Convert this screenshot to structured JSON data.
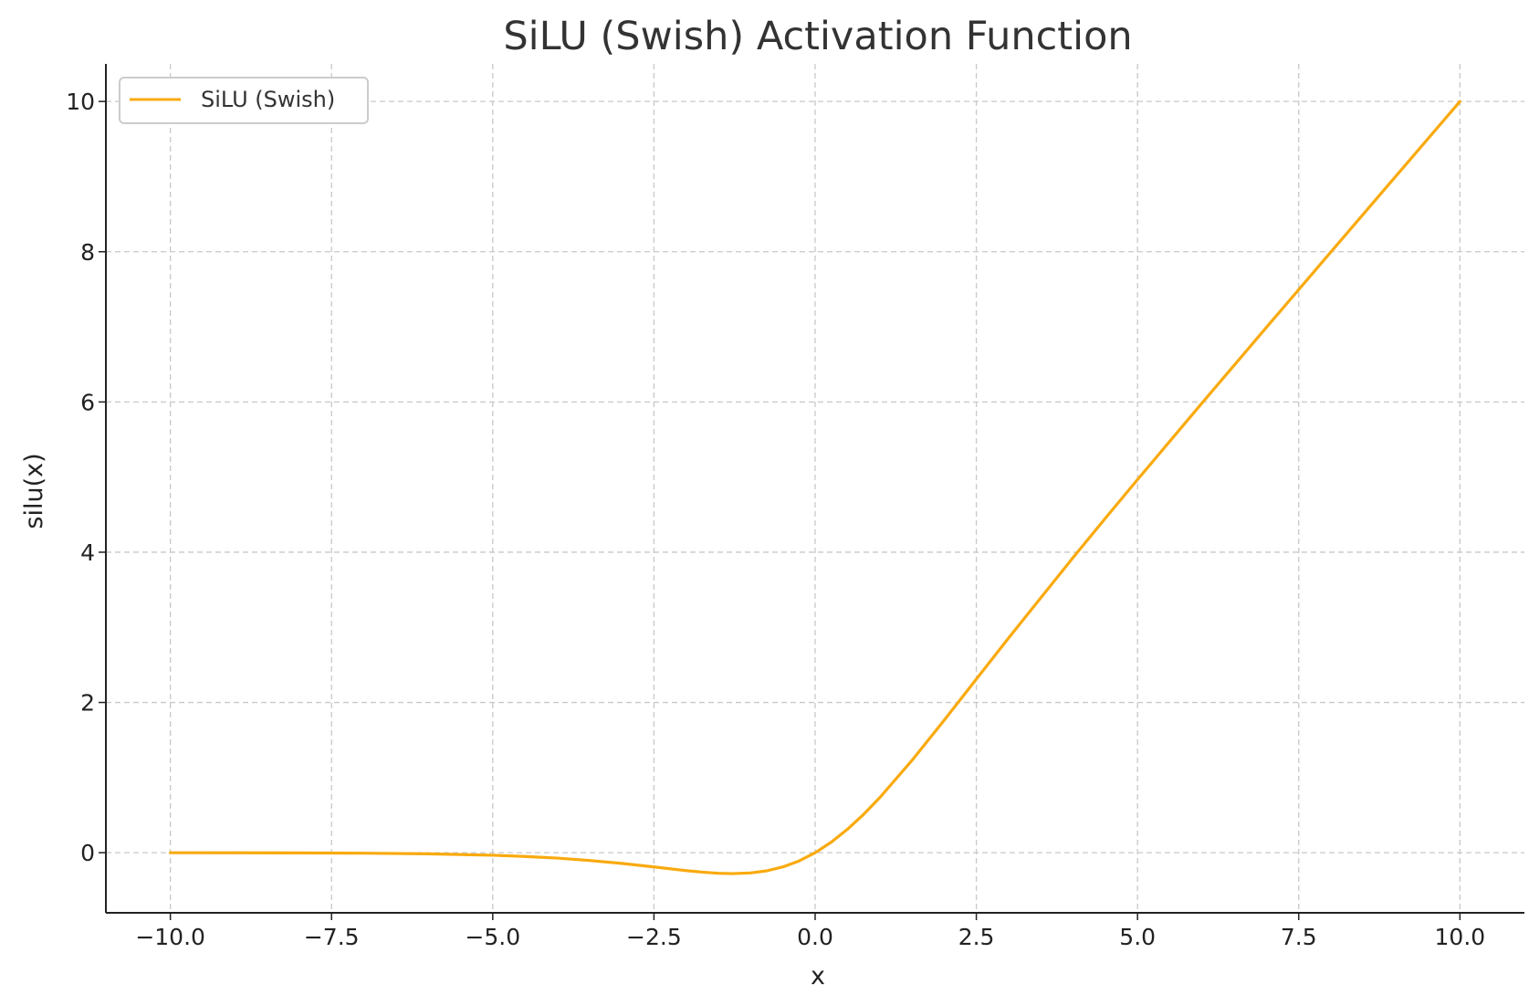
{
  "chart_data": {
    "type": "line",
    "title": "SiLU (Swish) Activation Function",
    "xlabel": "x",
    "ylabel": "silu(x)",
    "xlim": [
      -11,
      11
    ],
    "ylim": [
      -0.8,
      10.5
    ],
    "x_ticks": [
      -10,
      -7.5,
      -5,
      -2.5,
      0,
      2.5,
      5,
      7.5,
      10
    ],
    "x_tick_labels": [
      "−10.0",
      "−7.5",
      "−5.0",
      "−2.5",
      "0.0",
      "2.5",
      "5.0",
      "7.5",
      "10.0"
    ],
    "y_ticks": [
      0,
      2,
      4,
      6,
      8,
      10
    ],
    "y_tick_labels": [
      "0",
      "2",
      "4",
      "6",
      "8",
      "10"
    ],
    "grid": true,
    "grid_style": "dashed",
    "legend_position": "upper-left",
    "series": [
      {
        "name": "SiLU (Swish)",
        "color": "#F9AA0E",
        "x": [
          -10,
          -9,
          -8,
          -7,
          -6,
          -5,
          -4.5,
          -4,
          -3.5,
          -3,
          -2.5,
          -2,
          -1.75,
          -1.5,
          -1.28,
          -1,
          -0.75,
          -0.5,
          -0.25,
          0,
          0.25,
          0.5,
          0.75,
          1,
          1.5,
          2,
          2.5,
          3,
          3.5,
          4,
          4.5,
          5,
          6,
          7,
          8,
          9,
          10
        ],
        "y": [
          -0.0005,
          -0.0011,
          -0.0027,
          -0.0064,
          -0.0148,
          -0.0335,
          -0.0495,
          -0.0719,
          -0.1033,
          -0.1423,
          -0.1896,
          -0.2384,
          -0.2586,
          -0.2736,
          -0.2785,
          -0.2689,
          -0.2411,
          -0.1888,
          -0.1097,
          0,
          0.1403,
          0.3112,
          0.5089,
          0.7311,
          1.2263,
          1.7616,
          2.3104,
          2.8577,
          3.3929,
          3.9281,
          4.45,
          4.9665,
          5.9852,
          6.9936,
          7.9973,
          8.9989,
          9.9995
        ]
      }
    ]
  }
}
